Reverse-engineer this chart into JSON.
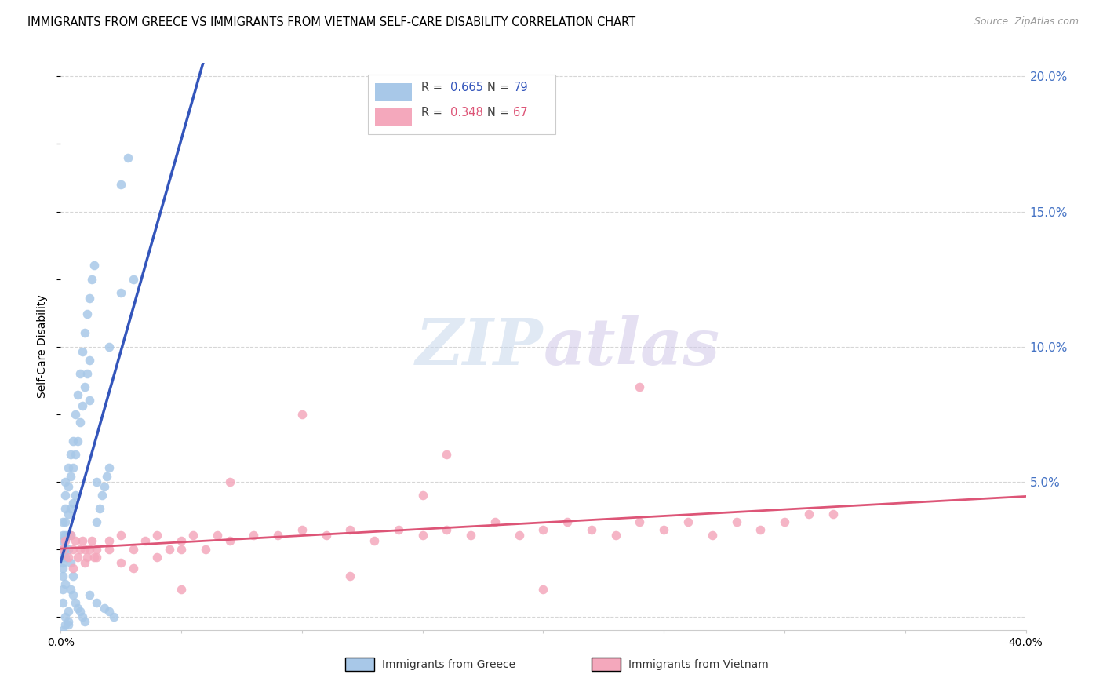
{
  "title": "IMMIGRANTS FROM GREECE VS IMMIGRANTS FROM VIETNAM SELF-CARE DISABILITY CORRELATION CHART",
  "source": "Source: ZipAtlas.com",
  "ylabel": "Self-Care Disability",
  "xlim": [
    0.0,
    0.4
  ],
  "ylim": [
    -0.005,
    0.205
  ],
  "greece_color": "#a8c8e8",
  "vietnam_color": "#f4a8bc",
  "greece_line_color": "#3355bb",
  "vietnam_line_color": "#dd5577",
  "dashed_line_color": "#a8c8e8",
  "background_color": "#ffffff",
  "grid_color": "#cccccc",
  "tick_label_color_right": "#4472c4",
  "right_yticks": [
    0.05,
    0.1,
    0.15,
    0.2
  ],
  "right_ytick_labels": [
    "5.0%",
    "10.0%",
    "15.0%",
    "20.0%"
  ],
  "xticks": [
    0.0,
    0.05,
    0.1,
    0.15,
    0.2,
    0.25,
    0.3,
    0.35,
    0.4
  ],
  "xtick_labels": [
    "0.0%",
    "",
    "",
    "",
    "",
    "",
    "",
    "",
    "40.0%"
  ],
  "greece_R": "0.665",
  "greece_N": "79",
  "vietnam_R": "0.348",
  "vietnam_N": "67"
}
